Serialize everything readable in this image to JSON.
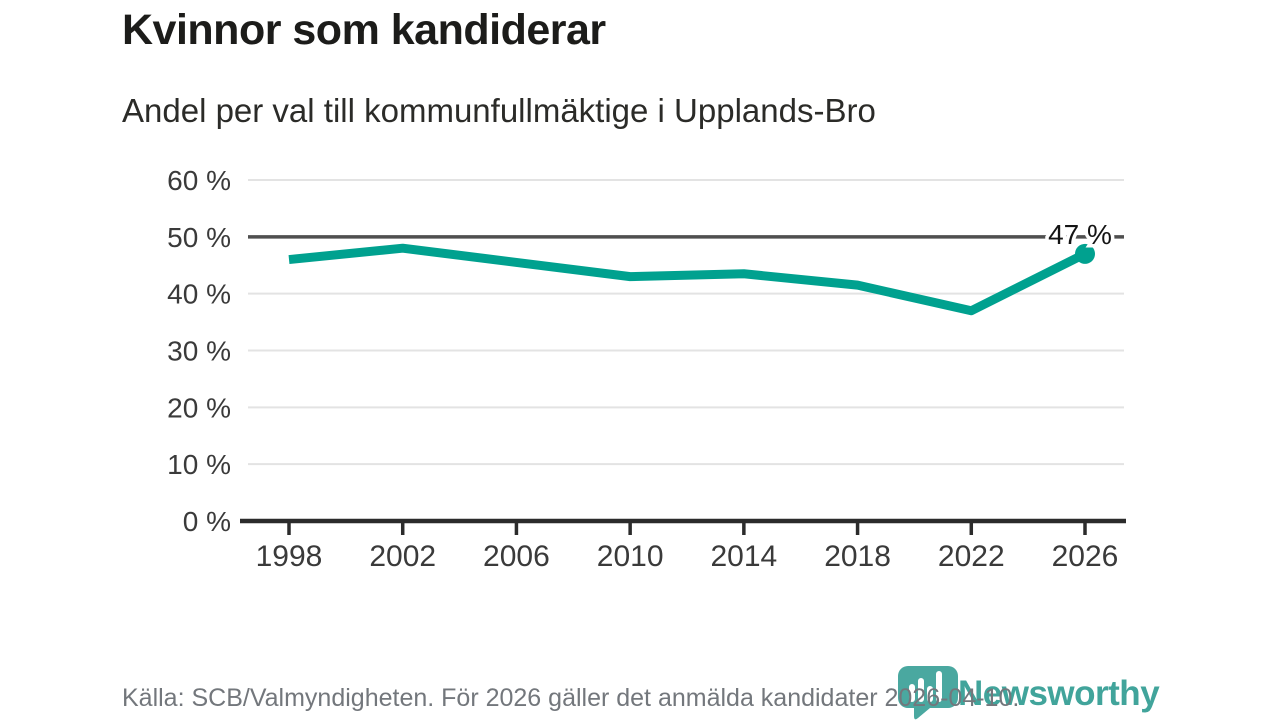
{
  "header": {
    "title": "Kvinnor som kandiderar",
    "subtitle": "Andel per val till kommunfullmäktige i Upplands-Bro"
  },
  "footer": {
    "source": "Källa: SCB/Valmyndigheten. För 2026 gäller det anmälda kandidater 2026-04-10."
  },
  "branding": {
    "logo_text": "Newsworthy",
    "logo_icon": "newsworthy-bar-chart-pin-badge",
    "logo_color": "#41a49b",
    "badge_color": "#4aa8a0"
  },
  "colors": {
    "line": "#00a18f",
    "point": "#00a18f",
    "grid": "#e3e3e3",
    "reference_line": "#4f4f4f",
    "axis": "#2b2b2b",
    "tick_label": "#3a3a3a",
    "annotation_text": "#141414"
  },
  "chart_data": {
    "type": "line",
    "title": "Kvinnor som kandiderar",
    "subtitle": "Andel per val till kommunfullmäktige i Upplands-Bro",
    "categories": [
      "1998",
      "2002",
      "2006",
      "2010",
      "2014",
      "2018",
      "2022",
      "2026"
    ],
    "series": [
      {
        "name": "Andel kvinnor som kandiderar",
        "values": [
          46,
          48,
          45.5,
          43,
          43.5,
          41.5,
          37,
          47
        ]
      }
    ],
    "xlabel": "",
    "ylabel": "",
    "ylim": [
      0,
      60
    ],
    "yticks": [
      {
        "value": 0,
        "label": "0 %"
      },
      {
        "value": 10,
        "label": "10 %"
      },
      {
        "value": 20,
        "label": "20 %"
      },
      {
        "value": 30,
        "label": "30 %"
      },
      {
        "value": 40,
        "label": "40 %"
      },
      {
        "value": 50,
        "label": "50 %"
      },
      {
        "value": 60,
        "label": "60 %"
      }
    ],
    "reference_line_value": 50,
    "grid": true,
    "legend_position": "none",
    "end_label": "47 %"
  }
}
